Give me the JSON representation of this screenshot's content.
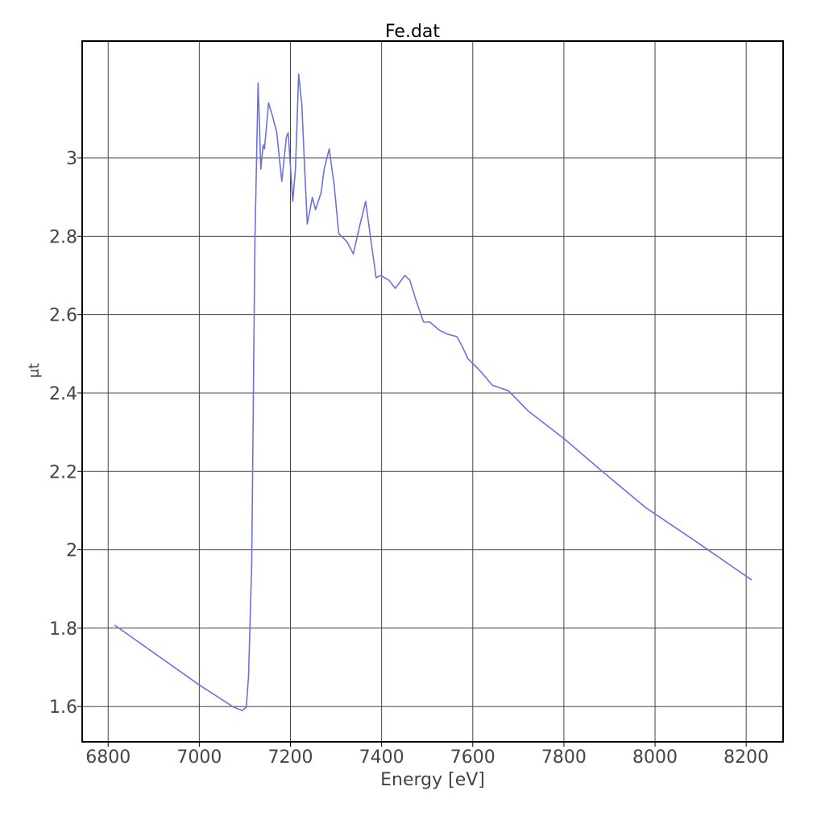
{
  "chart_data": {
    "type": "line",
    "title": "Fe.dat",
    "x_label": "Energy [eV]",
    "y_label": "μt",
    "x": [
      6814,
      7000,
      7076,
      7094,
      7103,
      7108,
      7115,
      7122,
      7129,
      7135,
      7140,
      7143,
      7152,
      7161,
      7170,
      7181,
      7191,
      7195,
      7205,
      7211,
      7218,
      7225,
      7232,
      7237,
      7248,
      7255,
      7267,
      7274,
      7285,
      7296,
      7306,
      7324,
      7338,
      7352,
      7365,
      7377,
      7388,
      7398,
      7416,
      7430,
      7451,
      7462,
      7474,
      7492,
      7506,
      7527,
      7545,
      7565,
      7577,
      7589,
      7616,
      7643,
      7678,
      7722,
      7802,
      7873,
      7979,
      8085,
      8212
    ],
    "values": [
      1.808,
      1.655,
      1.598,
      1.59,
      1.598,
      1.676,
      1.964,
      2.786,
      3.191,
      2.971,
      3.033,
      3.023,
      3.14,
      3.105,
      3.064,
      2.94,
      3.053,
      3.064,
      2.889,
      2.971,
      3.214,
      3.136,
      2.951,
      2.831,
      2.899,
      2.868,
      2.91,
      2.971,
      3.023,
      2.93,
      2.807,
      2.786,
      2.755,
      2.827,
      2.889,
      2.786,
      2.694,
      2.7,
      2.688,
      2.667,
      2.7,
      2.688,
      2.642,
      2.581,
      2.581,
      2.56,
      2.55,
      2.544,
      2.519,
      2.488,
      2.457,
      2.42,
      2.406,
      2.354,
      2.282,
      2.211,
      2.108,
      2.025,
      1.923
    ],
    "color": "#6b72d9",
    "xlim": [
      6743,
      8281
    ],
    "xticks": [
      6800,
      7000,
      7200,
      7400,
      7600,
      7800,
      8000,
      8200
    ],
    "ylim": [
      1.51,
      3.298
    ],
    "yticks": [
      1.6,
      1.8,
      2,
      2.2,
      2.4,
      2.6,
      2.8,
      3
    ],
    "grid": true
  }
}
